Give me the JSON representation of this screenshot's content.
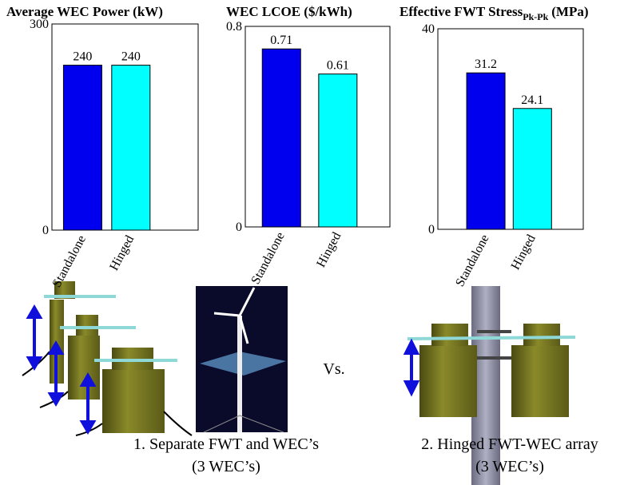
{
  "chart_data": [
    {
      "type": "bar",
      "title": "Average WEC Power (kW)",
      "categories": [
        "Standalone",
        "Hinged"
      ],
      "values": [
        240,
        240
      ],
      "colors": [
        "#0000ee",
        "#00ffff"
      ],
      "ylim": [
        0,
        300
      ],
      "yticks": [
        0,
        300
      ]
    },
    {
      "type": "bar",
      "title": "WEC LCOE ($/kWh)",
      "categories": [
        "Standalone",
        "Hinged"
      ],
      "values": [
        0.71,
        0.61
      ],
      "colors": [
        "#0000ee",
        "#00ffff"
      ],
      "ylim": [
        0,
        0.8
      ],
      "yticks": [
        0,
        0.8
      ]
    },
    {
      "type": "bar",
      "title": "Effective FWT Stress",
      "title_subscript": "Pk-Pk",
      "title_unit": "(MPa)",
      "categories": [
        "Standalone",
        "Hinged"
      ],
      "values": [
        31.2,
        24.1
      ],
      "colors": [
        "#0000ee",
        "#00ffff"
      ],
      "ylim": [
        0,
        40
      ],
      "yticks": [
        0,
        40
      ]
    }
  ],
  "captions": {
    "left_line1": "1.    Separate FWT and WEC’s",
    "left_line2": "(3 WEC’s)",
    "versus": "Vs.",
    "right_line1": "2. Hinged FWT-WEC array",
    "right_line2": "(3 WEC’s)"
  }
}
